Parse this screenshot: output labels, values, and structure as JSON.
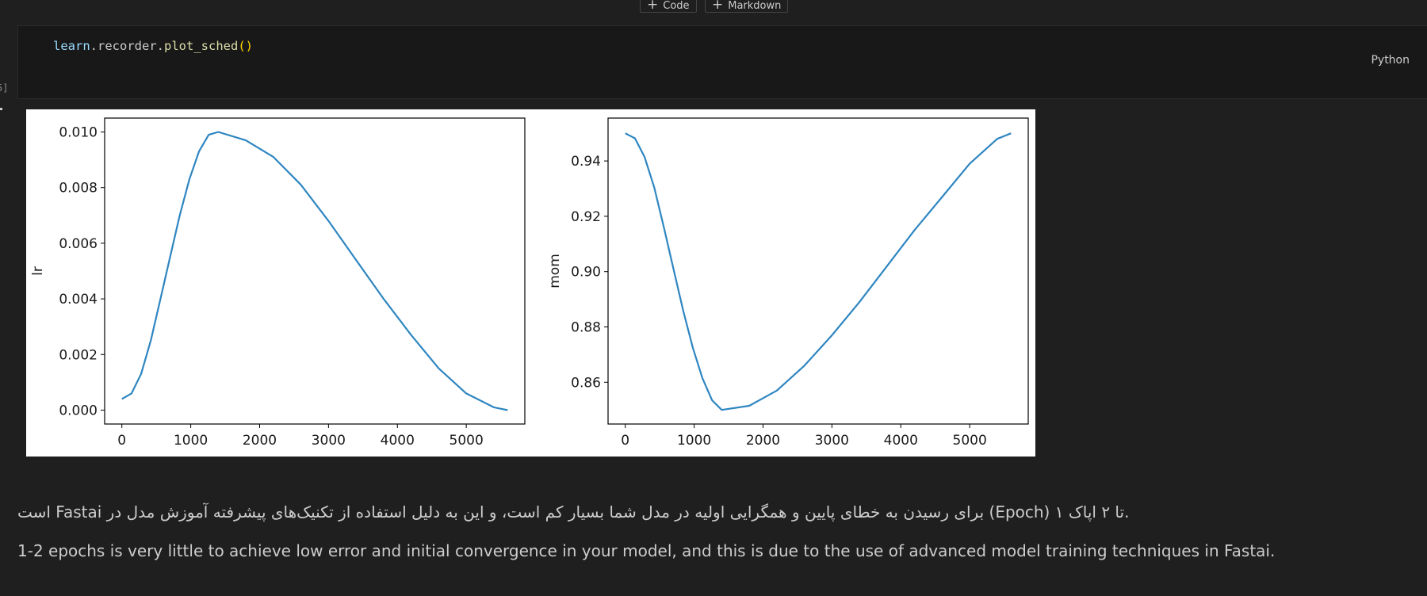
{
  "toolbar": {
    "code_button": "Code",
    "markdown_button": "Markdown"
  },
  "cell": {
    "execution_count": "5]",
    "code": {
      "object": "learn",
      "dot1": ".",
      "attr": "recorder",
      "dot2": ".",
      "method": "plot_sched",
      "parens": "()"
    },
    "language": "Python"
  },
  "markdown": {
    "persian": "است Fastai برای رسیدن به خطای پایین و همگرایی اولیه در مدل شما بسیار کم است، و این به دلیل استفاده از تکنیک‌های پیشرفته آموزش مدل در (Epoch) تا ۲ اپاک ۱.",
    "english": "1-2 epochs is very little to achieve low error and initial convergence in your model, and this is due to the use of advanced model training techniques in Fastai."
  },
  "colors": {
    "background": "#1f1f1f",
    "cell_background": "#181818",
    "line": "#2e86c1"
  },
  "chart_data": [
    {
      "type": "line",
      "ylabel": "lr",
      "xlim": [
        0,
        5600
      ],
      "ylim": [
        0,
        0.01
      ],
      "xticks": [
        "0",
        "1000",
        "2000",
        "3000",
        "4000",
        "5000"
      ],
      "yticks": [
        "0.000",
        "0.002",
        "0.004",
        "0.006",
        "0.008",
        "0.010"
      ],
      "series": [
        {
          "x": [
            0,
            140,
            280,
            420,
            560,
            700,
            840,
            980,
            1120,
            1260,
            1400,
            1800,
            2200,
            2600,
            3000,
            3400,
            3800,
            4200,
            4600,
            5000,
            5400,
            5600
          ],
          "values": [
            0.0004,
            0.0006,
            0.0013,
            0.0025,
            0.004,
            0.0055,
            0.007,
            0.0083,
            0.0093,
            0.0099,
            0.01,
            0.0097,
            0.0091,
            0.0081,
            0.0068,
            0.0054,
            0.004,
            0.0027,
            0.0015,
            0.0006,
            0.0001,
            0.0
          ]
        }
      ]
    },
    {
      "type": "line",
      "ylabel": "mom",
      "xlim": [
        0,
        5600
      ],
      "ylim": [
        0.85,
        0.95
      ],
      "xticks": [
        "0",
        "1000",
        "2000",
        "3000",
        "4000",
        "5000"
      ],
      "yticks": [
        "0.86",
        "0.88",
        "0.90",
        "0.92",
        "0.94"
      ],
      "series": [
        {
          "x": [
            0,
            140,
            280,
            420,
            560,
            700,
            840,
            980,
            1120,
            1260,
            1400,
            1800,
            2200,
            2600,
            3000,
            3400,
            3800,
            4200,
            4600,
            5000,
            5400,
            5600
          ],
          "values": [
            0.95,
            0.9482,
            0.9415,
            0.9305,
            0.916,
            0.901,
            0.886,
            0.8725,
            0.8615,
            0.8535,
            0.85,
            0.8515,
            0.857,
            0.866,
            0.877,
            0.889,
            0.902,
            0.915,
            0.927,
            0.939,
            0.948,
            0.95
          ]
        }
      ]
    }
  ]
}
